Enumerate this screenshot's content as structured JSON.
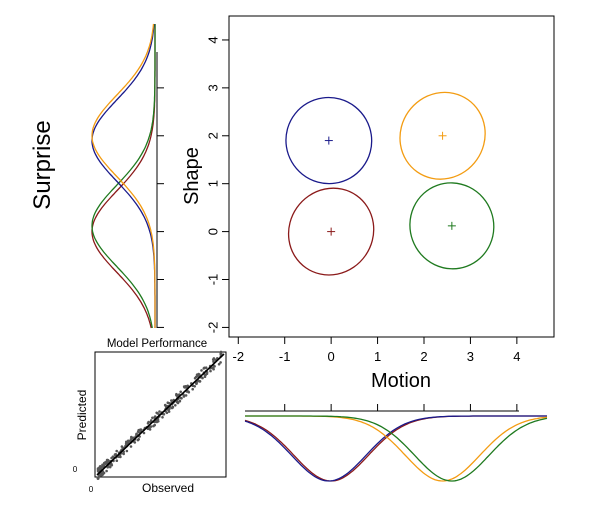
{
  "chart_data": [
    {
      "type": "scatter",
      "panel": "main",
      "title": "",
      "xlabel": "Motion",
      "ylabel": "Shape",
      "xlim": [
        -2.2,
        4.8
      ],
      "ylim": [
        -2.2,
        4.5
      ],
      "xticks": [
        "-2",
        "-1",
        "0",
        "1",
        "2",
        "3",
        "4"
      ],
      "yticks": [
        "-2",
        "-1",
        "0",
        "1",
        "2",
        "3",
        "4"
      ],
      "grid": false,
      "legend": "none",
      "series": [
        {
          "color": "#8b1a1a",
          "center": [
            0.0,
            0.0
          ],
          "ellipse": {
            "rx": 1.25,
            "ry": 1.28,
            "angle_deg": 35
          }
        },
        {
          "color": "#1a1a8b",
          "center": [
            -0.05,
            1.9
          ],
          "ellipse": {
            "rx": 1.28,
            "ry": 1.25,
            "angle_deg": -30
          }
        },
        {
          "color": "#f39c12",
          "center": [
            2.4,
            2.0
          ],
          "ellipse": {
            "rx": 1.25,
            "ry": 1.28,
            "angle_deg": 35
          }
        },
        {
          "color": "#1f7a1f",
          "center": [
            2.6,
            0.12
          ],
          "ellipse": {
            "rx": 1.25,
            "ry": 1.25,
            "angle_deg": -20
          }
        }
      ]
    },
    {
      "type": "line",
      "panel": "left-marginal",
      "ylabel": "Surprise",
      "orientation": "vertical",
      "axis_range": [
        -2.2,
        4.5
      ],
      "curves": [
        {
          "color": "#8b1a1a",
          "mean": 0.0,
          "sd": 0.85,
          "depth": 1.0
        },
        {
          "color": "#1f7a1f",
          "mean": 0.12,
          "sd": 0.85,
          "depth": 1.0
        },
        {
          "color": "#1a1a8b",
          "mean": 1.9,
          "sd": 0.85,
          "depth": 1.0
        },
        {
          "color": "#f39c12",
          "mean": 2.0,
          "sd": 0.85,
          "depth": 1.0
        }
      ]
    },
    {
      "type": "line",
      "panel": "bottom-marginal",
      "orientation": "horizontal",
      "axis_range": [
        -2.2,
        4.5
      ],
      "curves": [
        {
          "color": "#8b1a1a",
          "mean": 0.0,
          "sd": 0.8,
          "depth": 1.0
        },
        {
          "color": "#1a1a8b",
          "mean": -0.05,
          "sd": 0.8,
          "depth": 1.0
        },
        {
          "color": "#f39c12",
          "mean": 2.4,
          "sd": 0.8,
          "depth": 1.0
        },
        {
          "color": "#1f7a1f",
          "mean": 2.6,
          "sd": 0.8,
          "depth": 1.0
        }
      ]
    },
    {
      "type": "scatter",
      "panel": "inset",
      "title": "Model Performance",
      "xlabel": "Observed",
      "ylabel": "Predicted",
      "x_origin_label": "0",
      "y_origin_label": "0",
      "fit_line": "y = x",
      "point_color": "#555555",
      "point_count": 300
    }
  ]
}
